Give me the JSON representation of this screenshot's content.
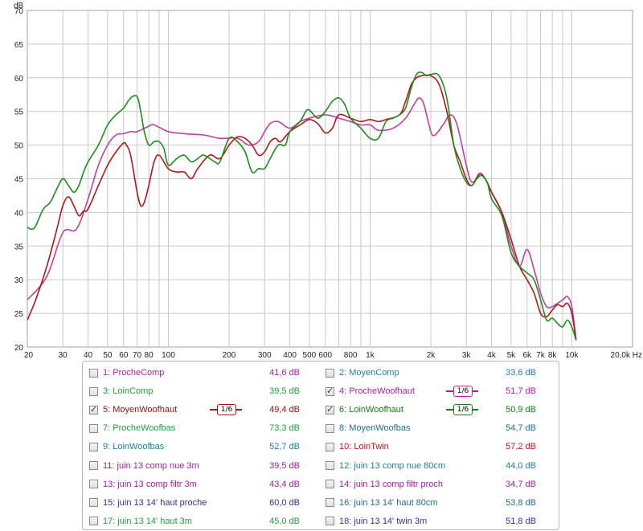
{
  "chart_data": {
    "type": "line",
    "x_scale": "log",
    "xlim": [
      20,
      20000
    ],
    "ylim": [
      20,
      70
    ],
    "ylabel": "dB",
    "x_tick_labels": [
      "20",
      "30",
      "40",
      "50",
      "60",
      "70",
      "80",
      "100",
      "200",
      "300",
      "400",
      "500",
      "600",
      "800",
      "1k",
      "2k",
      "3k",
      "4k",
      "5k",
      "6k",
      "7k",
      "8k",
      "10k",
      "20,0k Hz"
    ],
    "x_tick_values": [
      20,
      30,
      40,
      50,
      60,
      70,
      80,
      100,
      200,
      300,
      400,
      500,
      600,
      800,
      1000,
      2000,
      3000,
      4000,
      5000,
      6000,
      7000,
      8000,
      10000,
      20000
    ],
    "y_ticks": [
      20,
      25,
      30,
      35,
      40,
      45,
      50,
      55,
      60,
      65,
      70
    ],
    "grid": true,
    "series": [
      {
        "name": "4: ProcheWoofhaut",
        "color": "#c040a0",
        "points": [
          [
            20,
            27
          ],
          [
            25,
            30.5
          ],
          [
            30,
            37
          ],
          [
            35,
            37.5
          ],
          [
            40,
            42
          ],
          [
            45,
            47
          ],
          [
            50,
            50
          ],
          [
            55,
            51.5
          ],
          [
            60,
            51.7
          ],
          [
            65,
            52
          ],
          [
            70,
            52
          ],
          [
            80,
            52.8
          ],
          [
            85,
            53
          ],
          [
            100,
            52
          ],
          [
            120,
            51.7
          ],
          [
            150,
            51.5
          ],
          [
            180,
            51
          ],
          [
            220,
            51
          ],
          [
            250,
            50
          ],
          [
            280,
            50.5
          ],
          [
            300,
            52
          ],
          [
            320,
            53.2
          ],
          [
            350,
            53.5
          ],
          [
            400,
            52.5
          ],
          [
            450,
            53.5
          ],
          [
            500,
            54
          ],
          [
            600,
            54.5
          ],
          [
            700,
            54
          ],
          [
            800,
            53.5
          ],
          [
            900,
            53
          ],
          [
            1000,
            53
          ],
          [
            1100,
            52.2
          ],
          [
            1300,
            52.5
          ],
          [
            1500,
            54
          ],
          [
            1650,
            56
          ],
          [
            1750,
            57
          ],
          [
            1850,
            56
          ],
          [
            2000,
            52
          ],
          [
            2100,
            51.5
          ],
          [
            2300,
            53
          ],
          [
            2500,
            54.5
          ],
          [
            2700,
            53
          ],
          [
            3000,
            47
          ],
          [
            3200,
            44.5
          ],
          [
            3600,
            45.5
          ],
          [
            4000,
            43
          ],
          [
            4500,
            40
          ],
          [
            5000,
            35
          ],
          [
            5500,
            32
          ],
          [
            6000,
            34.5
          ],
          [
            6500,
            31.5
          ],
          [
            7000,
            28
          ],
          [
            7500,
            26
          ],
          [
            8000,
            26
          ],
          [
            9000,
            27
          ],
          [
            9500,
            27.5
          ],
          [
            10000,
            26
          ],
          [
            10500,
            21
          ]
        ]
      },
      {
        "name": "5: MoyenWoofhaut",
        "color": "#b01818",
        "points": [
          [
            20,
            24
          ],
          [
            22,
            27
          ],
          [
            25,
            32
          ],
          [
            28,
            37.5
          ],
          [
            30,
            41
          ],
          [
            32,
            42.3
          ],
          [
            34,
            41
          ],
          [
            36,
            39.5
          ],
          [
            38,
            40.2
          ],
          [
            40,
            40.5
          ],
          [
            45,
            44
          ],
          [
            50,
            47
          ],
          [
            55,
            49
          ],
          [
            60,
            50.3
          ],
          [
            62,
            50
          ],
          [
            65,
            48.5
          ],
          [
            70,
            43
          ],
          [
            73,
            41
          ],
          [
            76,
            41.5
          ],
          [
            80,
            44
          ],
          [
            85,
            47.5
          ],
          [
            90,
            48.5
          ],
          [
            100,
            46.5
          ],
          [
            110,
            46
          ],
          [
            120,
            46
          ],
          [
            130,
            45
          ],
          [
            140,
            46.5
          ],
          [
            160,
            48.5
          ],
          [
            180,
            48
          ],
          [
            200,
            50
          ],
          [
            220,
            51.2
          ],
          [
            240,
            51
          ],
          [
            260,
            50
          ],
          [
            280,
            48.5
          ],
          [
            300,
            49
          ],
          [
            320,
            50.5
          ],
          [
            340,
            51
          ],
          [
            360,
            50.5
          ],
          [
            400,
            52
          ],
          [
            450,
            53
          ],
          [
            500,
            53.8
          ],
          [
            550,
            53.2
          ],
          [
            600,
            51.8
          ],
          [
            650,
            52.5
          ],
          [
            700,
            54.5
          ],
          [
            800,
            54
          ],
          [
            900,
            53.5
          ],
          [
            1000,
            53.8
          ],
          [
            1100,
            53.5
          ],
          [
            1200,
            53.8
          ],
          [
            1400,
            54.5
          ],
          [
            1500,
            56.5
          ],
          [
            1600,
            59
          ],
          [
            1700,
            60
          ],
          [
            1800,
            60.3
          ],
          [
            2000,
            60.3
          ],
          [
            2200,
            59
          ],
          [
            2400,
            55
          ],
          [
            2600,
            50
          ],
          [
            2800,
            47.5
          ],
          [
            3000,
            45
          ],
          [
            3200,
            44
          ],
          [
            3500,
            45.8
          ],
          [
            3800,
            44.5
          ],
          [
            4000,
            43
          ],
          [
            4500,
            40
          ],
          [
            5000,
            36
          ],
          [
            5500,
            32
          ],
          [
            6000,
            30
          ],
          [
            6500,
            28
          ],
          [
            7000,
            25
          ],
          [
            7500,
            24.5
          ],
          [
            8000,
            25.5
          ],
          [
            8500,
            26.3
          ],
          [
            9000,
            26
          ],
          [
            9500,
            26.5
          ],
          [
            10000,
            25
          ],
          [
            10500,
            21
          ]
        ]
      },
      {
        "name": "6: LoinWoofhaut",
        "color": "#1e8c1e",
        "points": [
          [
            20,
            37.8
          ],
          [
            21,
            37.5
          ],
          [
            22,
            38
          ],
          [
            24,
            40.5
          ],
          [
            26,
            41.5
          ],
          [
            28,
            43.5
          ],
          [
            30,
            45
          ],
          [
            32,
            44
          ],
          [
            34,
            43
          ],
          [
            36,
            44
          ],
          [
            38,
            46
          ],
          [
            40,
            47.5
          ],
          [
            45,
            50
          ],
          [
            50,
            53
          ],
          [
            55,
            54.5
          ],
          [
            60,
            55.5
          ],
          [
            65,
            57
          ],
          [
            70,
            57.2
          ],
          [
            73,
            55
          ],
          [
            76,
            52
          ],
          [
            80,
            50
          ],
          [
            85,
            50.5
          ],
          [
            90,
            50.5
          ],
          [
            95,
            49.5
          ],
          [
            100,
            47
          ],
          [
            110,
            48
          ],
          [
            120,
            48.5
          ],
          [
            130,
            47.5
          ],
          [
            140,
            48
          ],
          [
            150,
            48.5
          ],
          [
            170,
            47.5
          ],
          [
            180,
            47.5
          ],
          [
            200,
            51
          ],
          [
            220,
            50.5
          ],
          [
            240,
            49
          ],
          [
            260,
            46
          ],
          [
            280,
            46.5
          ],
          [
            300,
            46.5
          ],
          [
            320,
            48
          ],
          [
            350,
            50
          ],
          [
            380,
            50
          ],
          [
            400,
            52
          ],
          [
            450,
            53.5
          ],
          [
            480,
            55
          ],
          [
            500,
            55.2
          ],
          [
            550,
            54
          ],
          [
            600,
            55
          ],
          [
            650,
            56.5
          ],
          [
            700,
            57
          ],
          [
            750,
            56
          ],
          [
            800,
            54
          ],
          [
            900,
            52.5
          ],
          [
            1000,
            51
          ],
          [
            1100,
            51
          ],
          [
            1200,
            53.5
          ],
          [
            1300,
            54
          ],
          [
            1400,
            54.5
          ],
          [
            1500,
            55.5
          ],
          [
            1600,
            58.5
          ],
          [
            1700,
            60.5
          ],
          [
            1800,
            60.8
          ],
          [
            1900,
            60.3
          ],
          [
            2000,
            60.5
          ],
          [
            2200,
            60.3
          ],
          [
            2400,
            57
          ],
          [
            2600,
            50
          ],
          [
            2800,
            46.5
          ],
          [
            3000,
            44.5
          ],
          [
            3200,
            44
          ],
          [
            3500,
            45.5
          ],
          [
            3800,
            44.5
          ],
          [
            4000,
            42
          ],
          [
            4500,
            39.5
          ],
          [
            5000,
            34
          ],
          [
            5500,
            32
          ],
          [
            6000,
            31
          ],
          [
            6500,
            30
          ],
          [
            7000,
            27
          ],
          [
            7500,
            24
          ],
          [
            8000,
            24.3
          ],
          [
            8500,
            23.5
          ],
          [
            9000,
            23
          ],
          [
            9500,
            24
          ],
          [
            10000,
            23
          ],
          [
            10500,
            21
          ]
        ]
      }
    ]
  },
  "legend": {
    "rows": [
      {
        "left": {
          "label": "1: ProcheComp",
          "color": "#b020a0",
          "value": "41,6 dB",
          "checked": false
        },
        "right": {
          "label": "2: MoyenComp",
          "color": "#2080a0",
          "value": "33,6 dB",
          "checked": false
        }
      },
      {
        "left": {
          "label": "3: LoinComp",
          "color": "#20a040",
          "value": "39,5 dB",
          "checked": false
        },
        "right": {
          "label": "4: ProcheWoofhaut",
          "color": "#b020a0",
          "value": "51,7 dB",
          "checked": true,
          "smoothing": "1/6"
        }
      },
      {
        "left": {
          "label": "5: MoyenWoofhaut",
          "color": "#a01010",
          "value": "49,4 dB",
          "checked": true,
          "smoothing": "1/6"
        },
        "right": {
          "label": "6: LoinWoofhaut",
          "color": "#108010",
          "value": "50,9 dB",
          "checked": true,
          "smoothing": "1/6"
        }
      },
      {
        "left": {
          "label": "7: ProcheWoofbas",
          "color": "#20a040",
          "value": "73,3 dB",
          "checked": false
        },
        "right": {
          "label": "8: MoyenWoofbas",
          "color": "#207080",
          "value": "54,7 dB",
          "checked": false
        }
      },
      {
        "left": {
          "label": "9: LoinWoofbas",
          "color": "#2080a0",
          "value": "52,7 dB",
          "checked": false
        },
        "right": {
          "label": "10: LoinTwin",
          "color": "#c01818",
          "value": "57,2 dB",
          "checked": false
        }
      },
      {
        "left": {
          "label": "11: juin 13 comp nue 3m",
          "color": "#a020a0",
          "value": "39,5 dB",
          "checked": false
        },
        "right": {
          "label": "12: juin 13 comp nue 80cm",
          "color": "#2080a0",
          "value": "44,0 dB",
          "checked": false
        }
      },
      {
        "left": {
          "label": "13: juin 13 comp filtr 3m",
          "color": "#a020a0",
          "value": "43,4 dB",
          "checked": false
        },
        "right": {
          "label": "14: juin 13 comp filtr proch",
          "color": "#a020a0",
          "value": "34,7 dB",
          "checked": false
        }
      },
      {
        "left": {
          "label": "15: juin 13 14' haut proche",
          "color": "#3030a0",
          "value": "60,0 dB",
          "checked": false
        },
        "right": {
          "label": "16: juin 13 14' haut 80cm",
          "color": "#207080",
          "value": "53,8 dB",
          "checked": false
        }
      },
      {
        "left": {
          "label": "17: juin 13 14' haut 3m",
          "color": "#20a040",
          "value": "45,0 dB",
          "checked": false
        },
        "right": {
          "label": "18: juin 13 14' twin 3m",
          "color": "#3030a0",
          "value": "51,8 dB",
          "checked": false
        }
      }
    ]
  }
}
